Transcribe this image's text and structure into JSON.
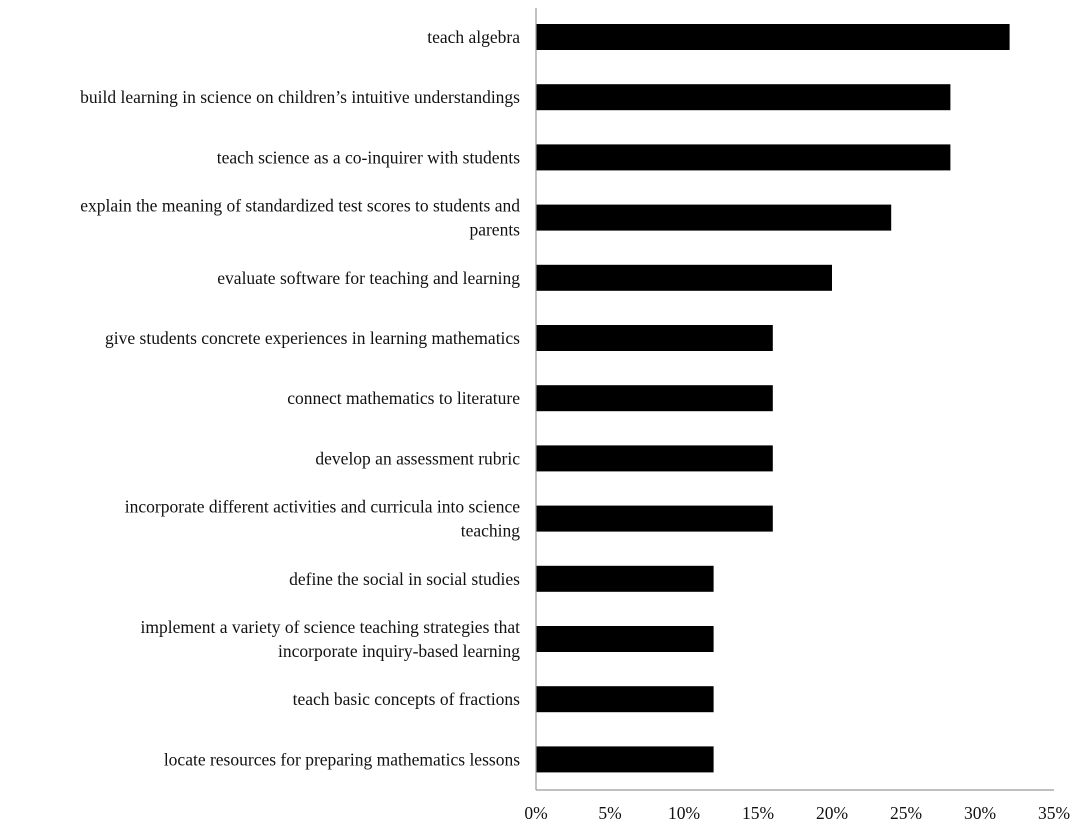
{
  "chart_data": {
    "type": "bar",
    "orientation": "horizontal",
    "categories": [
      [
        "teach algebra"
      ],
      [
        "build learning in science on children’s intuitive understandings"
      ],
      [
        "teach science as a co-inquirer with students"
      ],
      [
        "explain the meaning of standardized test scores to students and",
        "parents"
      ],
      [
        "evaluate software for teaching and learning"
      ],
      [
        "give students concrete experiences in learning mathematics"
      ],
      [
        "connect mathematics to literature"
      ],
      [
        "develop an assessment rubric"
      ],
      [
        "incorporate different activities and curricula into science",
        "teaching"
      ],
      [
        "define the social in social studies"
      ],
      [
        "implement a variety of science teaching strategies that",
        "incorporate inquiry-based learning"
      ],
      [
        "teach basic concepts of fractions"
      ],
      [
        "locate resources for preparing mathematics lessons"
      ]
    ],
    "values": [
      32,
      28,
      28,
      24,
      20,
      16,
      16,
      16,
      16,
      12,
      12,
      12,
      12
    ],
    "value_unit": "percent",
    "xlim": [
      0,
      35
    ],
    "xticks": [
      0,
      5,
      10,
      15,
      20,
      25,
      30,
      35
    ],
    "xtick_labels": [
      "0%",
      "5%",
      "10%",
      "15%",
      "20%",
      "25%",
      "30%",
      "35%"
    ],
    "title": "",
    "xlabel": "",
    "ylabel": "",
    "grid": false,
    "legend": "none",
    "colors": {
      "bar": "#000000",
      "axis": "#9a9a9a",
      "text": "#111111"
    }
  }
}
